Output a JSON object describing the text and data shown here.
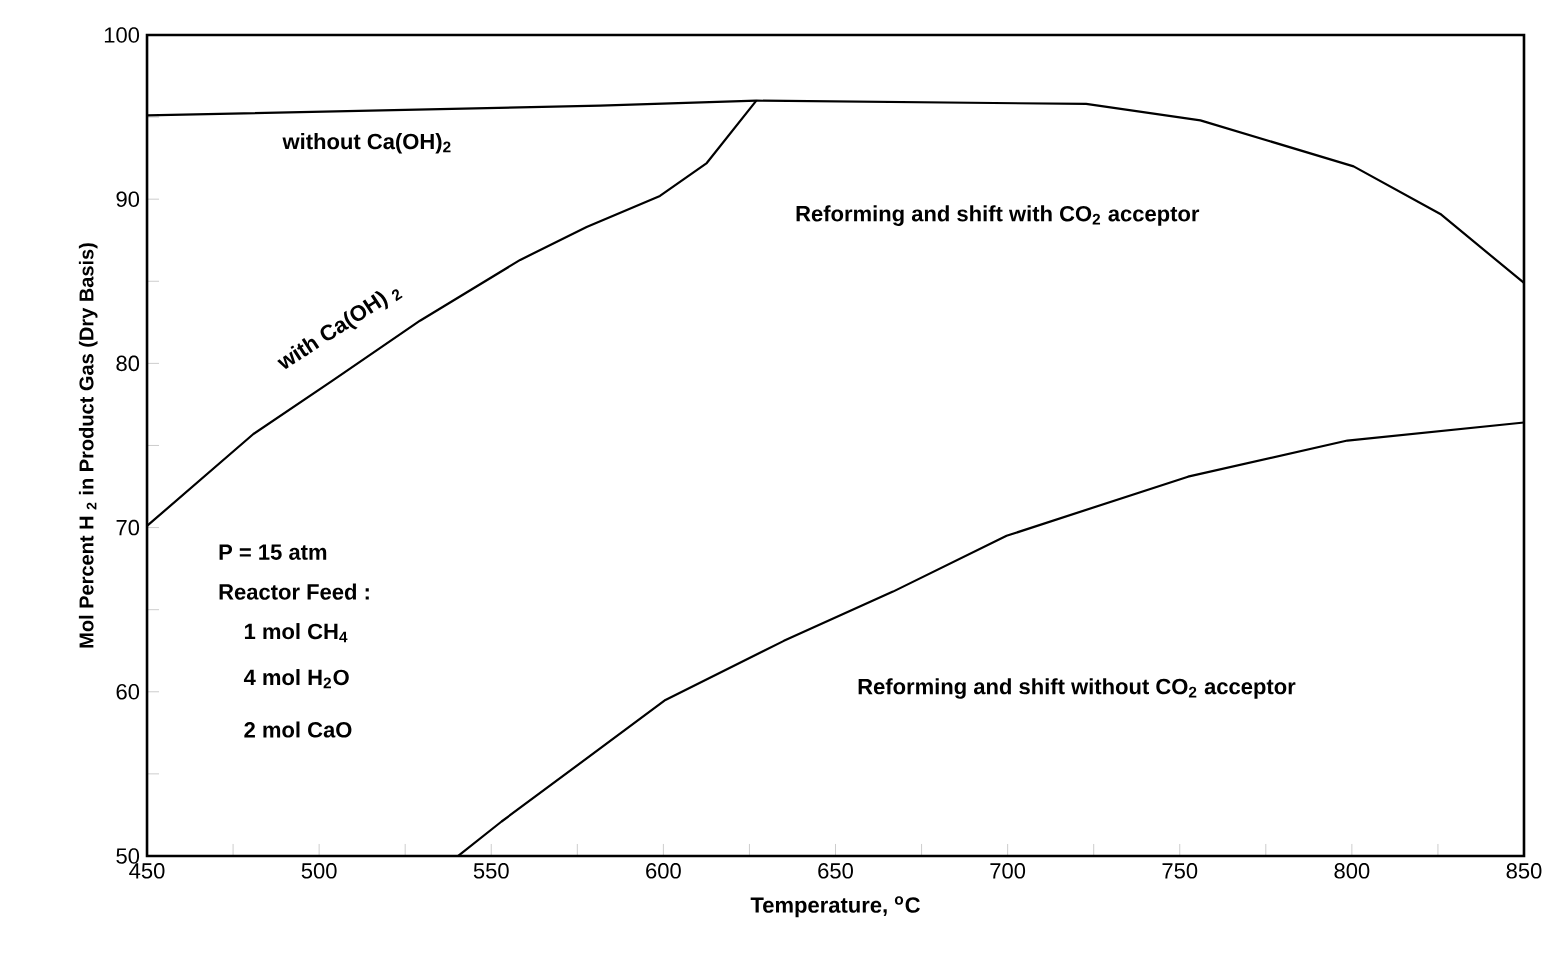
{
  "chart_data": {
    "type": "line",
    "xlabel": "Temperature, $^{o}$C",
    "ylabel": "Mol Percent H $_{2}$ in Product Gas (Dry Basis)",
    "xlim": [
      450,
      850
    ],
    "ylim": [
      50,
      100
    ],
    "xticks": [
      450,
      {
        "value": 475,
        "label": null
      },
      500,
      {
        "value": 525,
        "label": null
      },
      550,
      {
        "value": 575,
        "label": null
      },
      600,
      {
        "value": 625,
        "label": null
      },
      650,
      {
        "value": 675,
        "label": null
      },
      700,
      {
        "value": 725,
        "label": null
      },
      750,
      {
        "value": 775,
        "label": null
      },
      800,
      {
        "value": 825,
        "label": null
      },
      850
    ],
    "yticks": [
      50,
      {
        "value": 55,
        "label": null
      },
      60,
      {
        "value": 65,
        "label": null
      },
      70,
      {
        "value": 75,
        "label": null
      },
      80,
      {
        "value": 85,
        "label": null
      },
      90,
      {
        "value": 95,
        "label": null
      },
      100
    ],
    "grid": false,
    "legend": false,
    "marker": "none",
    "line_style": "solid",
    "series": [
      {
        "name": "without Ca(OH)$_{2}$",
        "color": "#000000",
        "x": [
          450,
          581.6,
          627,
          722.8,
          756,
          800.5,
          825.7,
          850
        ],
        "values": [
          95.1,
          95.7,
          96.0,
          95.8,
          94.8,
          92.0,
          89.1,
          84.9
        ]
      },
      {
        "name": "with Ca(OH) $_{2}$",
        "color": "#000000",
        "x": [
          450,
          480.9,
          504.2,
          529.3,
          558.4,
          577.7,
          599,
          612.6,
          627
        ],
        "values": [
          70.1,
          75.7,
          79.0,
          82.6,
          86.3,
          88.3,
          90.2,
          92.2,
          96.0
        ]
      },
      {
        "color": "#000000",
        "x": [
          540.4,
          553,
          600.6,
          635,
          666.7,
          699.7,
          752.4,
          798.7,
          850
        ],
        "values": [
          50,
          52.1,
          59.5,
          63.1,
          66.1,
          69.5,
          73.1,
          75.3,
          76.4
        ]
      }
    ],
    "annotations": [
      "Reforming and shift with CO$_{2}$ acceptor",
      "Reforming and shift without CO$_{2}$ acceptor",
      "P = 15 atm",
      "Reactor Feed :",
      "1 mol CH$_{4}$",
      "4 mol H$_{2}$O",
      "2 mol CaO"
    ]
  }
}
